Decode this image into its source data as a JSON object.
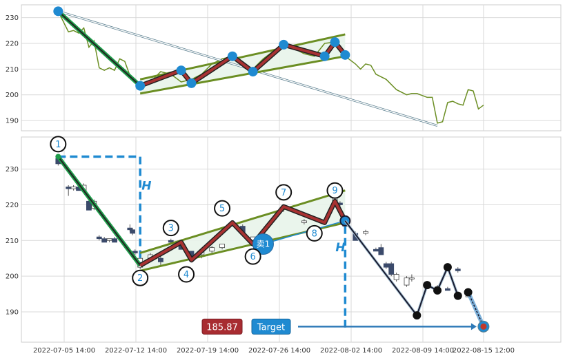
{
  "chart_data": {
    "type": "line",
    "x_ticks": [
      "2022-07-05 14:00",
      "2022-07-12 14:00",
      "2022-07-19 14:00",
      "2022-07-26 14:00",
      "2022-08-02 14:00",
      "2022-08-09 14:00",
      "2022-08-15 12:00"
    ],
    "overview": {
      "y_ticks": [
        190,
        200,
        210,
        220,
        230
      ],
      "ylim": [
        186,
        235
      ],
      "close_series": [
        {
          "x": "2022-07-05",
          "y": 232.5
        },
        {
          "x": "2022-07-06",
          "y": 224.5
        },
        {
          "x": "2022-07-06T12",
          "y": 225
        },
        {
          "x": "2022-07-07",
          "y": 224
        },
        {
          "x": "2022-07-07T12",
          "y": 226
        },
        {
          "x": "2022-07-08",
          "y": 218.5
        },
        {
          "x": "2022-07-08T12",
          "y": 221
        },
        {
          "x": "2022-07-09",
          "y": 210.5
        },
        {
          "x": "2022-07-09T12",
          "y": 209.5
        },
        {
          "x": "2022-07-10",
          "y": 210.5
        },
        {
          "x": "2022-07-10T12",
          "y": 209.5
        },
        {
          "x": "2022-07-11",
          "y": 214
        },
        {
          "x": "2022-07-11T12",
          "y": 213
        },
        {
          "x": "2022-07-12",
          "y": 207.5
        },
        {
          "x": "2022-07-12T12",
          "y": 205
        },
        {
          "x": "2022-07-13",
          "y": 203
        },
        {
          "x": "2022-07-14",
          "y": 205
        },
        {
          "x": "2022-07-15",
          "y": 209
        },
        {
          "x": "2022-07-16",
          "y": 208
        },
        {
          "x": "2022-07-17",
          "y": 205
        },
        {
          "x": "2022-07-18",
          "y": 206
        },
        {
          "x": "2022-07-19",
          "y": 208
        },
        {
          "x": "2022-07-20",
          "y": 212
        },
        {
          "x": "2022-07-21",
          "y": 214
        },
        {
          "x": "2022-07-22",
          "y": 215
        },
        {
          "x": "2022-07-23",
          "y": 211
        },
        {
          "x": "2022-07-24",
          "y": 210
        },
        {
          "x": "2022-07-25",
          "y": 214
        },
        {
          "x": "2022-07-26",
          "y": 217
        },
        {
          "x": "2022-07-27",
          "y": 219.5
        },
        {
          "x": "2022-07-28",
          "y": 218
        },
        {
          "x": "2022-07-29",
          "y": 216
        },
        {
          "x": "2022-07-30",
          "y": 215
        },
        {
          "x": "2022-07-31",
          "y": 220
        },
        {
          "x": "2022-08-01",
          "y": 220.5
        },
        {
          "x": "2022-08-02",
          "y": 215
        },
        {
          "x": "2022-08-03",
          "y": 212
        },
        {
          "x": "2022-08-03T12",
          "y": 210
        },
        {
          "x": "2022-08-04",
          "y": 212
        },
        {
          "x": "2022-08-04T12",
          "y": 211.5
        },
        {
          "x": "2022-08-05",
          "y": 208
        },
        {
          "x": "2022-08-06",
          "y": 206
        },
        {
          "x": "2022-08-07",
          "y": 202
        },
        {
          "x": "2022-08-08",
          "y": 200
        },
        {
          "x": "2022-08-08T12",
          "y": 200.5
        },
        {
          "x": "2022-08-09",
          "y": 200.5
        },
        {
          "x": "2022-08-10",
          "y": 199
        },
        {
          "x": "2022-08-10T12",
          "y": 199
        },
        {
          "x": "2022-08-11",
          "y": 189
        },
        {
          "x": "2022-08-11T12",
          "y": 189.5
        },
        {
          "x": "2022-08-12",
          "y": 197
        },
        {
          "x": "2022-08-12T12",
          "y": 197.5
        },
        {
          "x": "2022-08-13",
          "y": 196.5
        },
        {
          "x": "2022-08-13T12",
          "y": 196
        },
        {
          "x": "2022-08-14",
          "y": 202
        },
        {
          "x": "2022-08-14T12",
          "y": 201.5
        },
        {
          "x": "2022-08-15",
          "y": 194.5
        },
        {
          "x": "2022-08-15T12",
          "y": 196
        }
      ],
      "pattern_points": [
        {
          "x": "2022-07-05",
          "y": 232.5
        },
        {
          "x": "2022-07-13",
          "y": 203.5
        },
        {
          "x": "2022-07-17",
          "y": 209.5
        },
        {
          "x": "2022-07-18",
          "y": 204.5
        },
        {
          "x": "2022-07-22",
          "y": 215
        },
        {
          "x": "2022-07-24",
          "y": 209
        },
        {
          "x": "2022-07-27",
          "y": 219.5
        },
        {
          "x": "2022-07-31",
          "y": 215
        },
        {
          "x": "2022-08-01",
          "y": 220.5
        },
        {
          "x": "2022-08-02",
          "y": 215.5
        }
      ],
      "channel_upper": [
        {
          "x": "2022-07-13",
          "y": 206
        },
        {
          "x": "2022-08-02",
          "y": 223.5
        }
      ],
      "channel_lower": [
        {
          "x": "2022-07-13",
          "y": 200.5
        },
        {
          "x": "2022-08-02",
          "y": 215
        }
      ],
      "projection_line": [
        {
          "x": "2022-07-05",
          "y": 232.5
        },
        {
          "x": "2022-08-11",
          "y": 188
        }
      ]
    },
    "main": {
      "y_ticks": [
        190,
        200,
        210,
        220,
        230
      ],
      "ylim": [
        181.5,
        239
      ],
      "candles": [
        {
          "x": "2022-07-05",
          "o": 233,
          "h": 234,
          "l": 231,
          "c": 231.5
        },
        {
          "x": "2022-07-06",
          "o": 225,
          "h": 225.5,
          "l": 222.5,
          "c": 224.5
        },
        {
          "x": "2022-07-06T12",
          "o": 224.5,
          "h": 225.5,
          "l": 224,
          "c": 225
        },
        {
          "x": "2022-07-07",
          "o": 225,
          "h": 225,
          "l": 224,
          "c": 224
        },
        {
          "x": "2022-07-07T12",
          "o": 224,
          "h": 226,
          "l": 223.5,
          "c": 225.5
        },
        {
          "x": "2022-07-08",
          "o": 221,
          "h": 221.5,
          "l": 218.5,
          "c": 218.5
        },
        {
          "x": "2022-07-08T12",
          "o": 219,
          "h": 221.5,
          "l": 218.5,
          "c": 221
        },
        {
          "x": "2022-07-09",
          "o": 211,
          "h": 211.5,
          "l": 210,
          "c": 210.5
        },
        {
          "x": "2022-07-09T12",
          "o": 210.5,
          "h": 211,
          "l": 209.5,
          "c": 209.5
        },
        {
          "x": "2022-07-10",
          "o": 210,
          "h": 210.5,
          "l": 209.5,
          "c": 210.5
        },
        {
          "x": "2022-07-10T12",
          "o": 210.5,
          "h": 211,
          "l": 209.5,
          "c": 209.5
        },
        {
          "x": "2022-07-12",
          "o": 213.5,
          "h": 214.5,
          "l": 212.5,
          "c": 213
        },
        {
          "x": "2022-07-12T06",
          "o": 213,
          "h": 213.5,
          "l": 211.5,
          "c": 212
        },
        {
          "x": "2022-07-12T12",
          "o": 207,
          "h": 207.5,
          "l": 206,
          "c": 206.5
        },
        {
          "x": "2022-07-13",
          "o": 202.5,
          "h": 206,
          "l": 202,
          "c": 205
        },
        {
          "x": "2022-07-14",
          "o": 205,
          "h": 206.5,
          "l": 204,
          "c": 206
        },
        {
          "x": "2022-07-15",
          "o": 205,
          "h": 206,
          "l": 203,
          "c": 204
        },
        {
          "x": "2022-07-16",
          "o": 210,
          "h": 210.5,
          "l": 209,
          "c": 209.5
        },
        {
          "x": "2022-07-17",
          "o": 209.5,
          "h": 210,
          "l": 207.5,
          "c": 207.5
        },
        {
          "x": "2022-07-18",
          "o": 207,
          "h": 207,
          "l": 204.5,
          "c": 205
        },
        {
          "x": "2022-07-19",
          "o": 206,
          "h": 207,
          "l": 205,
          "c": 207
        },
        {
          "x": "2022-07-20",
          "o": 207,
          "h": 208.5,
          "l": 206.5,
          "c": 208
        },
        {
          "x": "2022-07-21",
          "o": 208,
          "h": 209,
          "l": 207.5,
          "c": 209
        },
        {
          "x": "2022-07-22",
          "o": 215,
          "h": 215.5,
          "l": 214,
          "c": 214.5
        },
        {
          "x": "2022-07-23",
          "o": 214,
          "h": 214.5,
          "l": 212,
          "c": 212
        },
        {
          "x": "2022-07-24",
          "o": 210,
          "h": 211,
          "l": 209,
          "c": 211
        },
        {
          "x": "2022-07-27",
          "o": 219,
          "h": 220,
          "l": 218,
          "c": 219.5
        },
        {
          "x": "2022-07-29",
          "o": 215,
          "h": 216,
          "l": 214.5,
          "c": 215.5
        },
        {
          "x": "2022-08-01",
          "o": 221,
          "h": 224,
          "l": 220,
          "c": 223
        },
        {
          "x": "2022-08-01T12",
          "o": 220.5,
          "h": 221,
          "l": 219.5,
          "c": 220
        },
        {
          "x": "2022-08-02",
          "o": 214,
          "h": 215,
          "l": 212,
          "c": 214.5
        },
        {
          "x": "2022-08-03",
          "o": 212,
          "h": 212.5,
          "l": 210,
          "c": 210
        },
        {
          "x": "2022-08-04",
          "o": 212,
          "h": 213,
          "l": 211.5,
          "c": 212.5
        },
        {
          "x": "2022-08-05",
          "o": 207.5,
          "h": 208,
          "l": 207,
          "c": 207
        },
        {
          "x": "2022-08-05T12",
          "o": 208,
          "h": 209,
          "l": 206,
          "c": 206
        },
        {
          "x": "2022-08-06",
          "o": 203.5,
          "h": 204,
          "l": 202,
          "c": 202.5
        },
        {
          "x": "2022-08-06T12",
          "o": 203.5,
          "h": 204,
          "l": 200,
          "c": 200.5
        },
        {
          "x": "2022-08-07",
          "o": 199,
          "h": 201,
          "l": 198.5,
          "c": 200.5
        },
        {
          "x": "2022-08-08",
          "o": 197.5,
          "h": 200,
          "l": 197,
          "c": 199.5
        },
        {
          "x": "2022-08-08T12",
          "o": 199.5,
          "h": 200.5,
          "l": 198.5,
          "c": 199.5
        },
        {
          "x": "2022-08-09",
          "o": 189.5,
          "h": 189.5,
          "l": 189,
          "c": 189.5
        },
        {
          "x": "2022-08-10",
          "o": 197,
          "h": 197.5,
          "l": 196.5,
          "c": 197
        },
        {
          "x": "2022-08-11",
          "o": 197,
          "h": 197.5,
          "l": 196,
          "c": 196.5
        },
        {
          "x": "2022-08-12",
          "o": 196.5,
          "h": 197,
          "l": 196,
          "c": 196
        },
        {
          "x": "2022-08-13",
          "o": 202,
          "h": 202.5,
          "l": 201,
          "c": 201.5
        },
        {
          "x": "2022-08-14",
          "o": 194.5,
          "h": 195,
          "l": 194,
          "c": 194.5
        }
      ],
      "pattern_points": [
        {
          "x": "2022-07-05",
          "y": 233.5
        },
        {
          "x": "2022-07-13",
          "y": 203
        },
        {
          "x": "2022-07-17",
          "y": 209.5
        },
        {
          "x": "2022-07-18",
          "y": 204.5
        },
        {
          "x": "2022-07-22",
          "y": 215
        },
        {
          "x": "2022-07-24",
          "y": 209
        },
        {
          "x": "2022-07-27",
          "y": 219.5
        },
        {
          "x": "2022-07-31",
          "y": 215
        },
        {
          "x": "2022-08-01",
          "y": 221
        },
        {
          "x": "2022-08-02",
          "y": 215.5
        }
      ],
      "channel_upper": [
        {
          "x": "2022-07-13",
          "y": 206.5
        },
        {
          "x": "2022-08-02",
          "y": 224
        }
      ],
      "channel_lower": [
        {
          "x": "2022-07-13",
          "y": 201.5
        },
        {
          "x": "2022-08-02",
          "y": 215
        }
      ],
      "labels": [
        {
          "text": "1",
          "x": "2022-07-05",
          "y": 237
        },
        {
          "text": "2",
          "x": "2022-07-13",
          "y": 199.5
        },
        {
          "text": "3",
          "x": "2022-07-16",
          "y": 213.5
        },
        {
          "text": "4",
          "x": "2022-07-17T12",
          "y": 200.5
        },
        {
          "text": "5",
          "x": "2022-07-21",
          "y": 219
        },
        {
          "text": "6",
          "x": "2022-07-24",
          "y": 205.5
        },
        {
          "text": "7",
          "x": "2022-07-27",
          "y": 223.5
        },
        {
          "text": "8",
          "x": "2022-07-30",
          "y": 212
        },
        {
          "text": "9",
          "x": "2022-08-01",
          "y": 224
        }
      ],
      "sell_marker": {
        "text": "卖1",
        "x": "2022-07-25",
        "y": 209
      },
      "height_label": "H",
      "height_guide_top": 233.5,
      "projection_path": [
        {
          "x": "2022-08-02",
          "y": 215.5
        },
        {
          "x": "2022-08-09",
          "y": 189
        },
        {
          "x": "2022-08-10",
          "y": 197.5
        },
        {
          "x": "2022-08-11",
          "y": 196
        },
        {
          "x": "2022-08-12",
          "y": 202.5
        },
        {
          "x": "2022-08-13",
          "y": 194.5
        },
        {
          "x": "2022-08-14",
          "y": 195.5
        },
        {
          "x": "2022-08-15T12",
          "y": 185.87
        }
      ],
      "target_value": "185.87",
      "target_label": "Target"
    }
  },
  "colors": {
    "price_line": "#6b8e23",
    "pattern_fill": "#e8f4ea",
    "pattern_line": "#a83232",
    "pattern_outline": "#222222",
    "channel": "#6b8e23",
    "first_leg": "#1f9c4a",
    "marker": "#1f8ad1",
    "guide": "#1f8ad1",
    "target_box": "#a82c31",
    "target_tag": "#1f8ad1",
    "projection": "#1a1a2e",
    "candle_down": "#3b4a6b",
    "candle_up": "#ffffff",
    "grid": "#d9d9d9"
  }
}
